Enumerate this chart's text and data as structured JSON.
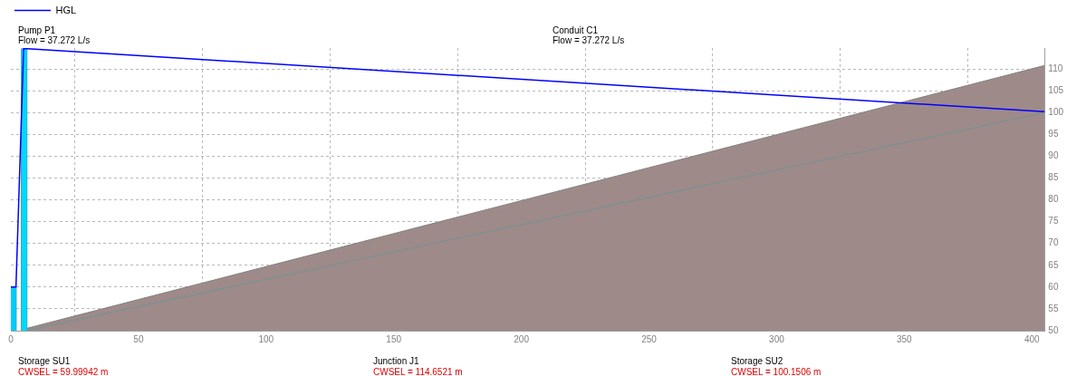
{
  "chart_data": {
    "type": "line",
    "legend": "top left",
    "grid": true,
    "marker": "none",
    "line_style": "solid",
    "xlim": [
      0,
      405
    ],
    "xticks": [
      0,
      50,
      100,
      150,
      200,
      250,
      300,
      350,
      400
    ],
    "ylim": [
      50,
      114.8
    ],
    "yticks": [
      50,
      55,
      60,
      65,
      70,
      75,
      80,
      85,
      90,
      95,
      100,
      105,
      110
    ],
    "annotations": [
      "Pump P1",
      "Flow = 37.272 L/s",
      "Conduit C1",
      "Flow = 37.272 L/s",
      "Storage SU1",
      "CWSEL = 59.99942 m",
      "Junction J1",
      "CWSEL = 114.6521 m",
      "Storage SU2",
      "CWSEL = 100.1506 m"
    ],
    "series": [
      {
        "type": "area",
        "color": "#9f8a8a",
        "x": [
          6,
          405
        ],
        "values": [
          50.5,
          110.8
        ]
      },
      {
        "type": "line",
        "color": "#7f9090",
        "x": [
          6,
          405
        ],
        "values": [
          50,
          100
        ]
      },
      {
        "type": "bar",
        "color": "#00ccff",
        "x": [
          1
        ],
        "base": [
          50
        ],
        "values": [
          10
        ]
      },
      {
        "type": "bar",
        "color": "#00d8ff",
        "x": [
          5.2
        ],
        "base": [
          50
        ],
        "values": [
          64.7
        ]
      },
      {
        "name": "HGL",
        "color": "#0000ff",
        "x": [
          0,
          2,
          5,
          405
        ],
        "values": [
          60,
          60,
          114.7,
          100.2
        ]
      }
    ]
  }
}
